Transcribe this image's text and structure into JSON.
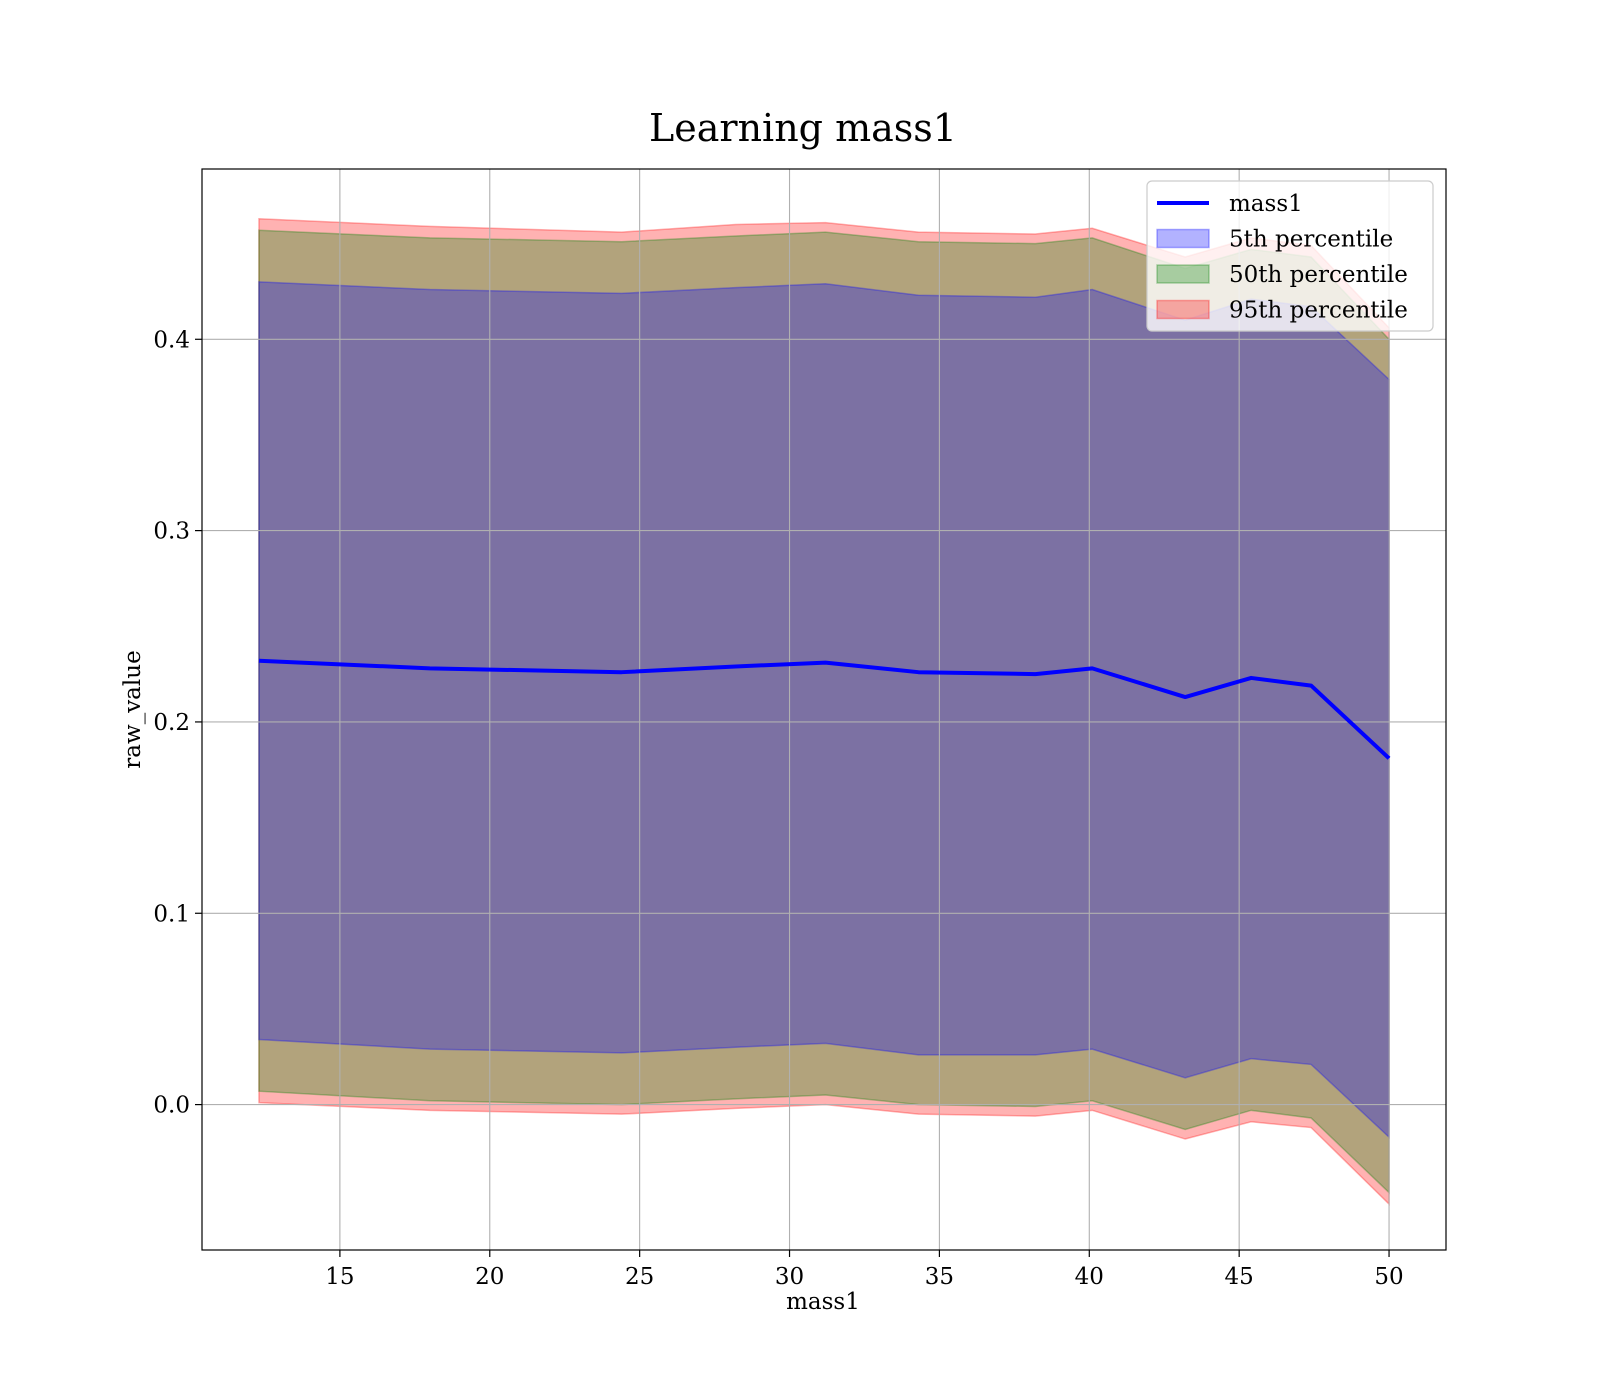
{
  "chart_data": {
    "type": "area",
    "title": "Learning mass1",
    "xlabel": "mass1",
    "ylabel": "raw_value",
    "xlim": [
      10.4,
      51.9
    ],
    "ylim": [
      -0.076,
      0.489
    ],
    "xticks": [
      15,
      20,
      25,
      30,
      35,
      40,
      45,
      50
    ],
    "yticks": [
      0.0,
      0.1,
      0.2,
      0.3,
      0.4
    ],
    "grid": true,
    "legend_position": "top-right",
    "x": [
      12.3,
      18.0,
      24.4,
      28.2,
      31.2,
      34.3,
      38.2,
      40.1,
      43.2,
      45.4,
      47.4,
      50.0
    ],
    "line": {
      "name": "mass1",
      "color": "#0000ff",
      "values": [
        0.232,
        0.228,
        0.226,
        0.229,
        0.231,
        0.226,
        0.225,
        0.228,
        0.213,
        0.223,
        0.219,
        0.181
      ]
    },
    "bands": [
      {
        "name": "95th percentile",
        "color": "#ff0000",
        "upper": [
          0.463,
          0.459,
          0.456,
          0.46,
          0.461,
          0.456,
          0.455,
          0.458,
          0.443,
          0.453,
          0.449,
          0.406
        ],
        "lower": [
          0.001,
          -0.003,
          -0.005,
          -0.002,
          0.0,
          -0.005,
          -0.006,
          -0.003,
          -0.018,
          -0.009,
          -0.012,
          -0.052
        ]
      },
      {
        "name": "50th percentile",
        "color": "#008000",
        "upper": [
          0.457,
          0.453,
          0.451,
          0.454,
          0.456,
          0.451,
          0.45,
          0.453,
          0.437,
          0.447,
          0.443,
          0.4
        ],
        "lower": [
          0.007,
          0.002,
          0.0,
          0.003,
          0.005,
          0.0,
          -0.001,
          0.002,
          -0.013,
          -0.003,
          -0.007,
          -0.046
        ]
      },
      {
        "name": "5th percentile",
        "color": "#0000ff",
        "upper": [
          0.43,
          0.426,
          0.424,
          0.427,
          0.429,
          0.423,
          0.422,
          0.426,
          0.41,
          0.421,
          0.417,
          0.379
        ],
        "lower": [
          0.034,
          0.029,
          0.027,
          0.03,
          0.032,
          0.026,
          0.026,
          0.029,
          0.014,
          0.024,
          0.021,
          -0.017
        ]
      }
    ],
    "legend": [
      "mass1",
      "5th percentile",
      "50th percentile",
      "95th percentile"
    ]
  }
}
